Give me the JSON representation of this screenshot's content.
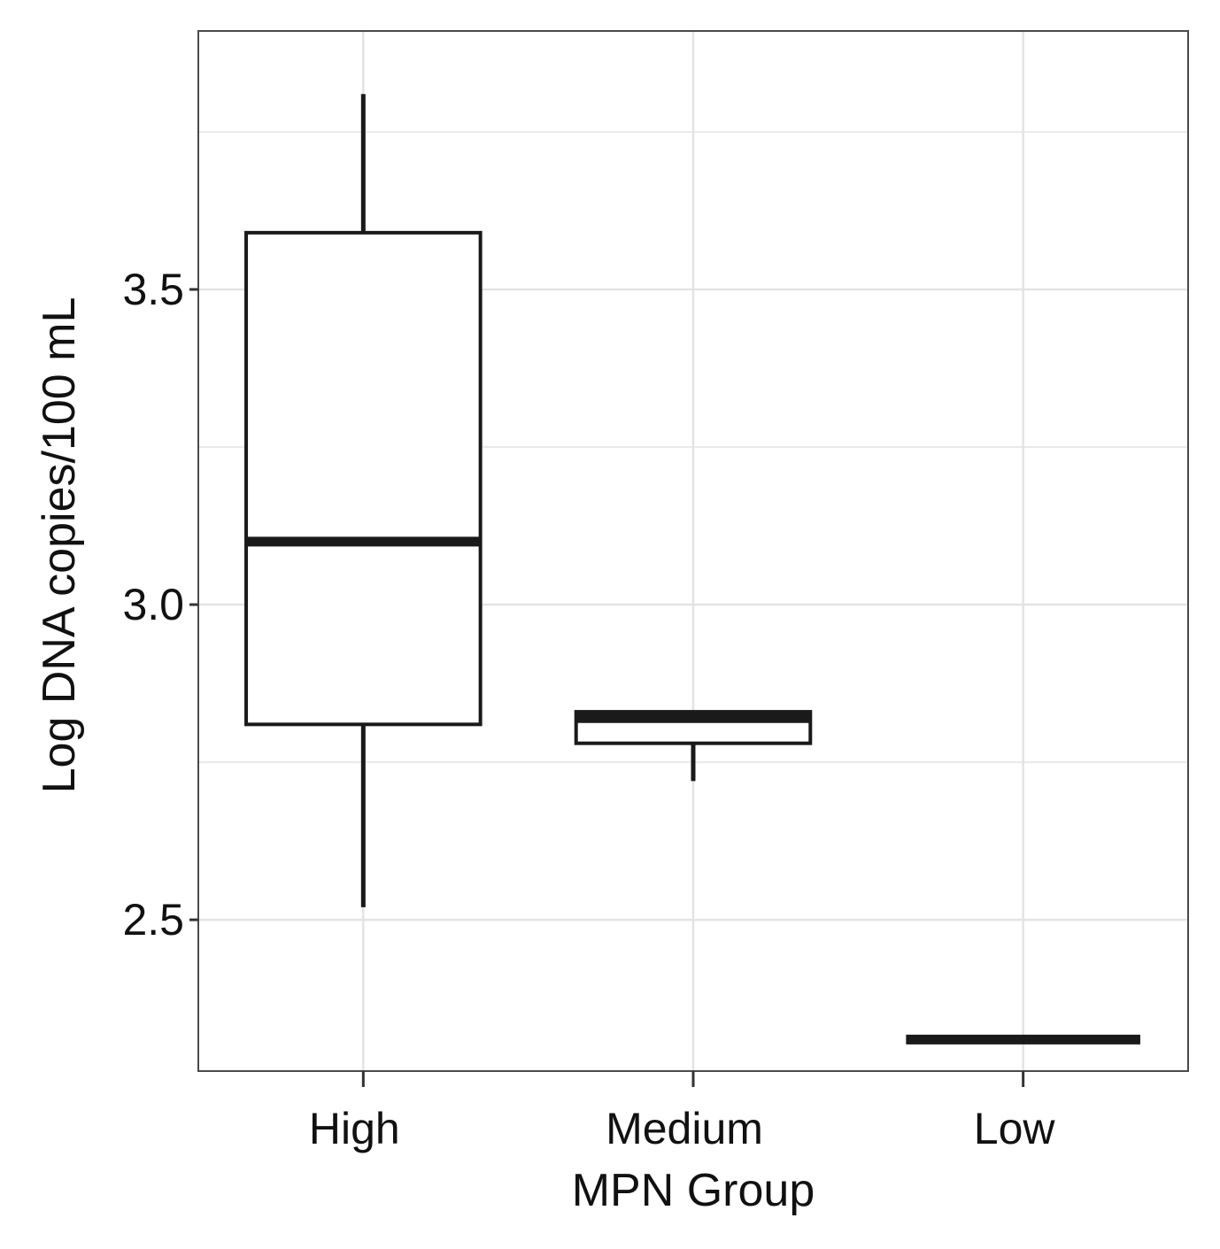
{
  "chart_data": {
    "type": "boxplot",
    "xlabel": "MPN Group",
    "ylabel": "Log DNA copies/100 mL",
    "categories": [
      "High",
      "Medium",
      "Low"
    ],
    "ylim": [
      2.26,
      3.91
    ],
    "yticks": [
      2.5,
      3.0,
      3.5
    ],
    "ytick_labels": [
      "2.5",
      "3.0",
      "3.5"
    ],
    "grid": true,
    "boxes": [
      {
        "category": "High",
        "whisker_low": 2.52,
        "q1": 2.81,
        "median": 3.1,
        "q3": 3.59,
        "whisker_high": 3.81
      },
      {
        "category": "Medium",
        "whisker_low": 2.72,
        "q1": 2.78,
        "median": 2.82,
        "q3": 2.83,
        "whisker_high": 2.83
      },
      {
        "category": "Low",
        "whisker_low": 2.31,
        "q1": 2.31,
        "median": 2.31,
        "q3": 2.31,
        "whisker_high": 2.31
      }
    ],
    "colors": {
      "box_fill": "#ffffff",
      "box_stroke": "#1a1a1a",
      "grid": "#e3e3e3",
      "panel_border": "#4a4a4a"
    }
  }
}
